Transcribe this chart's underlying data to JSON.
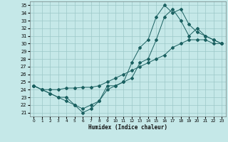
{
  "xlabel": "Humidex (Indice chaleur)",
  "bg_color": "#c5e8e8",
  "grid_color": "#9cc8c8",
  "line_color": "#1a6060",
  "xlim": [
    -0.5,
    23.5
  ],
  "ylim": [
    20.5,
    35.5
  ],
  "yticks": [
    21,
    22,
    23,
    24,
    25,
    26,
    27,
    28,
    29,
    30,
    31,
    32,
    33,
    34,
    35
  ],
  "xticks": [
    0,
    1,
    2,
    3,
    4,
    5,
    6,
    7,
    8,
    9,
    10,
    11,
    12,
    13,
    14,
    15,
    16,
    17,
    18,
    19,
    20,
    21,
    22,
    23
  ],
  "line1_x": [
    0,
    1,
    2,
    3,
    4,
    5,
    6,
    7,
    8,
    9,
    10,
    11,
    12,
    13,
    14,
    15,
    16,
    17,
    18,
    19,
    20,
    21,
    22,
    23
  ],
  "line1_y": [
    24.5,
    24.0,
    23.5,
    23.0,
    22.5,
    22.0,
    21.0,
    21.5,
    22.5,
    24.5,
    24.5,
    25.0,
    27.5,
    29.5,
    30.5,
    33.5,
    35.0,
    34.0,
    34.5,
    32.5,
    31.5,
    31.0,
    30.5,
    30.0
  ],
  "line2_x": [
    0,
    1,
    2,
    3,
    4,
    5,
    6,
    7,
    8,
    9,
    10,
    11,
    12,
    13,
    14,
    15,
    16,
    17,
    18,
    19,
    20,
    21,
    22,
    23
  ],
  "line2_y": [
    24.5,
    24.0,
    23.5,
    23.0,
    23.0,
    22.0,
    21.5,
    22.0,
    22.5,
    24.0,
    24.5,
    25.0,
    25.5,
    27.5,
    28.0,
    30.5,
    33.5,
    34.5,
    33.0,
    31.0,
    32.0,
    31.0,
    30.5,
    30.0
  ],
  "line3_x": [
    0,
    1,
    2,
    3,
    4,
    5,
    6,
    7,
    8,
    9,
    10,
    11,
    12,
    13,
    14,
    15,
    16,
    17,
    18,
    19,
    20,
    21,
    22,
    23
  ],
  "line3_y": [
    24.5,
    24.0,
    24.0,
    24.0,
    24.2,
    24.2,
    24.3,
    24.3,
    24.5,
    25.0,
    25.5,
    26.0,
    26.5,
    27.0,
    27.5,
    28.0,
    28.5,
    29.5,
    30.0,
    30.5,
    30.5,
    30.5,
    30.0,
    30.0
  ]
}
